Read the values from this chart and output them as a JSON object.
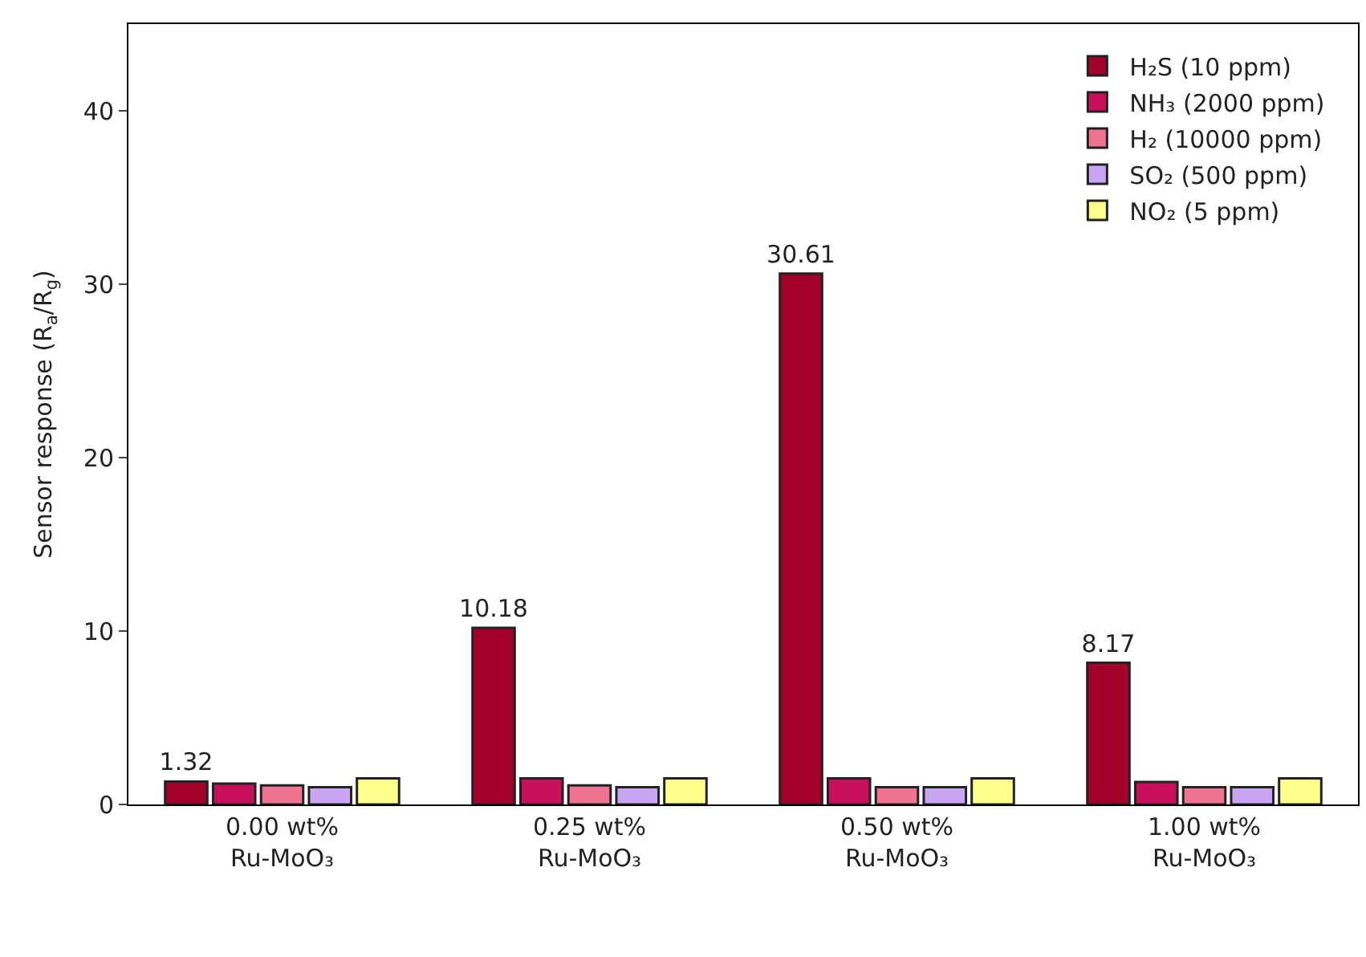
{
  "chart_data": {
    "type": "bar",
    "ylabel": "Sensor response (R$_{a}$/R$_{g}$)",
    "categories": [
      "0.00 wt%\nRu-MoO₃",
      "0.25 wt%\nRu-MoO₃",
      "0.50 wt%\nRu-MoO₃",
      "1.00 wt%\nRu-MoO₃"
    ],
    "series": [
      {
        "name": "H₂S (10 ppm)",
        "color": "#a3002a",
        "values": [
          1.32,
          10.18,
          30.61,
          8.17
        ],
        "value_labels": [
          "1.32",
          "10.18",
          "30.61",
          "8.17"
        ]
      },
      {
        "name": "NH₃ (2000 ppm)",
        "color": "#c8105a",
        "values": [
          1.2,
          1.5,
          1.5,
          1.3
        ]
      },
      {
        "name": "H₂ (10000 ppm)",
        "color": "#f07392",
        "values": [
          1.1,
          1.1,
          1.0,
          1.0
        ]
      },
      {
        "name": "SO₂ (500 ppm)",
        "color": "#c9a6f2",
        "values": [
          1.0,
          1.0,
          1.0,
          1.0
        ]
      },
      {
        "name": "NO₂ (5 ppm)",
        "color": "#ffff8c",
        "values": [
          1.5,
          1.5,
          1.5,
          1.5
        ]
      }
    ],
    "ylim": [
      0,
      45
    ],
    "yticks": [
      0,
      10,
      20,
      30,
      40
    ],
    "legend": "top right"
  }
}
